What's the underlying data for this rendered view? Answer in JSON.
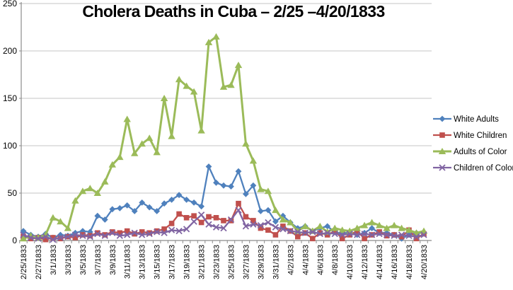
{
  "chart_data": {
    "type": "line",
    "title": "Cholera Deaths in Cuba – 2/25 –4/20/1833",
    "xlabel": "",
    "ylabel": "",
    "ylim": [
      0,
      250
    ],
    "yticks": [
      0,
      50,
      100,
      150,
      200,
      250
    ],
    "grid": true,
    "legend_position": "right",
    "x_tick_every": 2,
    "categories": [
      "2/25/1833",
      "2/26/1833",
      "2/27/1833",
      "2/28/1833",
      "3/1/1833",
      "3/2/1833",
      "3/3/1833",
      "3/4/1833",
      "3/5/1833",
      "3/6/1833",
      "3/7/1833",
      "3/8/1833",
      "3/9/1833",
      "3/10/1833",
      "3/11/1833",
      "3/12/1833",
      "3/13/1833",
      "3/14/1833",
      "3/15/1833",
      "3/16/1833",
      "3/17/1833",
      "3/18/1833",
      "3/19/1833",
      "3/20/1833",
      "3/21/1833",
      "3/22/1833",
      "3/23/1833",
      "3/24/1833",
      "3/25/1833",
      "3/26/1833",
      "3/27/1833",
      "3/28/1833",
      "3/29/1833",
      "3/30/1833",
      "3/31/1833",
      "4/1/1833",
      "4/2/1833",
      "4/3/1833",
      "4/4/1833",
      "4/5/1833",
      "4/6/1833",
      "4/7/1833",
      "4/8/1833",
      "4/9/1833",
      "4/10/1833",
      "4/11/1833",
      "4/12/1833",
      "4/13/1833",
      "4/14/1833",
      "4/15/1833",
      "4/16/1833",
      "4/17/1833",
      "4/18/1833",
      "4/19/1833",
      "4/20/1833"
    ],
    "series": [
      {
        "name": "White Adults",
        "color": "#4F81BD",
        "marker": "diamond",
        "values": [
          10,
          6,
          4,
          7,
          3,
          6,
          5,
          8,
          10,
          9,
          26,
          22,
          33,
          34,
          37,
          31,
          40,
          35,
          31,
          39,
          43,
          48,
          43,
          40,
          36,
          78,
          61,
          58,
          57,
          73,
          49,
          58,
          31,
          32,
          20,
          26,
          19,
          13,
          15,
          10,
          13,
          15,
          9,
          7,
          9,
          6,
          8,
          13,
          8,
          8,
          6,
          2,
          6,
          8,
          8
        ]
      },
      {
        "name": "White Children",
        "color": "#C0504D",
        "marker": "square",
        "values": [
          4,
          2,
          3,
          1,
          3,
          2,
          4,
          3,
          6,
          5,
          8,
          6,
          9,
          8,
          10,
          7,
          9,
          8,
          10,
          12,
          18,
          28,
          24,
          26,
          19,
          25,
          24,
          21,
          21,
          39,
          25,
          21,
          13,
          11,
          6,
          15,
          10,
          4,
          8,
          2,
          8,
          6,
          10,
          2,
          6,
          10,
          2,
          6,
          9,
          5,
          6,
          4,
          11,
          2,
          7
        ]
      },
      {
        "name": "Adults of Color",
        "color": "#9BBB59",
        "marker": "triangle",
        "values": [
          2,
          5,
          3,
          6,
          24,
          20,
          13,
          42,
          52,
          55,
          50,
          62,
          80,
          88,
          128,
          92,
          102,
          108,
          93,
          150,
          110,
          170,
          163,
          157,
          116,
          209,
          215,
          162,
          164,
          185,
          102,
          84,
          54,
          52,
          32,
          22,
          19,
          10,
          15,
          10,
          15,
          9,
          13,
          11,
          10,
          13,
          16,
          19,
          16,
          13,
          16,
          13,
          11,
          8,
          10
        ]
      },
      {
        "name": "Children of Color",
        "color": "#8064A2",
        "marker": "x",
        "values": [
          6,
          3,
          2,
          4,
          1,
          3,
          4,
          6,
          5,
          4,
          7,
          5,
          8,
          5,
          6,
          8,
          6,
          7,
          9,
          8,
          11,
          10,
          12,
          20,
          27,
          17,
          14,
          13,
          22,
          32,
          15,
          17,
          16,
          19,
          14,
          12,
          10,
          9,
          8,
          9,
          7,
          8,
          7,
          6,
          7,
          6,
          7,
          6,
          7,
          6,
          5,
          6,
          5,
          4,
          6
        ]
      }
    ],
    "colors": {
      "gridline": "#C6C6C6",
      "axis": "#8C8C8C",
      "background": "#FFFFFF",
      "text": "#000000"
    }
  }
}
